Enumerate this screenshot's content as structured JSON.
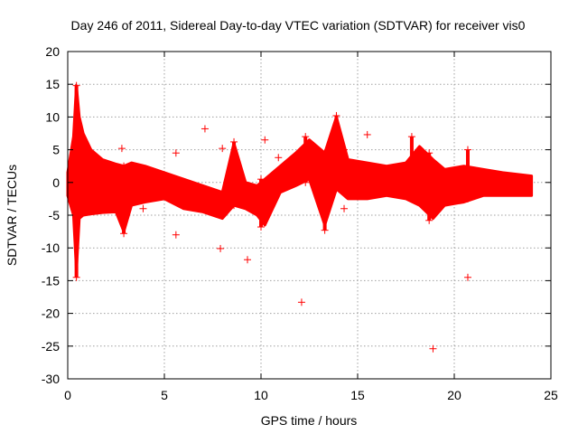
{
  "chart_data": {
    "type": "scatter",
    "title": "Day 246 of 2011, Sidereal Day-to-day VTEC variation (SDTVAR) for receiver vis0",
    "xlabel": "GPS time / hours",
    "ylabel": "SDTVAR / TECUs",
    "xlim": [
      0,
      25
    ],
    "ylim": [
      -30,
      20
    ],
    "xticks": [
      0,
      5,
      10,
      15,
      20,
      25
    ],
    "yticks": [
      -30,
      -25,
      -20,
      -15,
      -10,
      -5,
      0,
      5,
      10,
      15,
      20
    ],
    "grid": true,
    "marker": "+",
    "color": "#ff0000",
    "series": [
      {
        "name": "SDTVAR",
        "band": [
          {
            "x": 0.0,
            "upper": 1.5,
            "lower": -2.0
          },
          {
            "x": 0.3,
            "upper": 7.0,
            "lower": -5.0
          },
          {
            "x": 0.45,
            "upper": 14.8,
            "lower": -13.5
          },
          {
            "x": 0.6,
            "upper": 10.0,
            "lower": -5.5
          },
          {
            "x": 0.8,
            "upper": 7.5,
            "lower": -5.0
          },
          {
            "x": 1.2,
            "upper": 5.0,
            "lower": -4.8
          },
          {
            "x": 1.8,
            "upper": 3.5,
            "lower": -4.6
          },
          {
            "x": 2.5,
            "upper": 2.8,
            "lower": -4.5
          },
          {
            "x": 2.9,
            "upper": 2.5,
            "lower": -7.5
          },
          {
            "x": 3.3,
            "upper": 3.0,
            "lower": -3.5
          },
          {
            "x": 4.0,
            "upper": 2.5,
            "lower": -3.0
          },
          {
            "x": 5.0,
            "upper": 1.5,
            "lower": -2.5
          },
          {
            "x": 6.0,
            "upper": 0.5,
            "lower": -4.0
          },
          {
            "x": 7.0,
            "upper": -0.5,
            "lower": -4.5
          },
          {
            "x": 8.0,
            "upper": -1.5,
            "lower": -5.5
          },
          {
            "x": 8.6,
            "upper": 6.0,
            "lower": -3.5
          },
          {
            "x": 9.2,
            "upper": 0.0,
            "lower": -4.0
          },
          {
            "x": 9.8,
            "upper": -0.5,
            "lower": -5.0
          },
          {
            "x": 10.2,
            "upper": 0.5,
            "lower": -6.5
          },
          {
            "x": 11.0,
            "upper": 2.5,
            "lower": -1.5
          },
          {
            "x": 11.8,
            "upper": 4.5,
            "lower": -0.5
          },
          {
            "x": 12.5,
            "upper": 6.5,
            "lower": 0.5
          },
          {
            "x": 13.3,
            "upper": 4.5,
            "lower": -6.5
          },
          {
            "x": 13.9,
            "upper": 10.0,
            "lower": -1.0
          },
          {
            "x": 14.5,
            "upper": 3.5,
            "lower": -2.5
          },
          {
            "x": 15.5,
            "upper": 3.0,
            "lower": -2.5
          },
          {
            "x": 16.5,
            "upper": 2.5,
            "lower": -2.0
          },
          {
            "x": 17.5,
            "upper": 3.0,
            "lower": -2.5
          },
          {
            "x": 18.2,
            "upper": 5.5,
            "lower": -3.5
          },
          {
            "x": 18.9,
            "upper": 3.5,
            "lower": -5.5
          },
          {
            "x": 19.5,
            "upper": 2.0,
            "lower": -3.5
          },
          {
            "x": 20.5,
            "upper": 2.5,
            "lower": -3.0
          },
          {
            "x": 21.5,
            "upper": 2.0,
            "lower": -2.0
          },
          {
            "x": 22.5,
            "upper": 1.5,
            "lower": -2.0
          },
          {
            "x": 24.0,
            "upper": 1.0,
            "lower": -2.0
          }
        ],
        "spikes": [
          {
            "x": 0.45,
            "top": 14.8,
            "bottom": -14.5
          },
          {
            "x": 2.9,
            "top": 2.5,
            "bottom": -7.8
          },
          {
            "x": 8.6,
            "top": 6.2,
            "bottom": -3.5
          },
          {
            "x": 10.0,
            "top": 0.5,
            "bottom": -6.8
          },
          {
            "x": 12.3,
            "top": 7.0,
            "bottom": 0.0
          },
          {
            "x": 13.3,
            "top": 4.5,
            "bottom": -7.3
          },
          {
            "x": 13.9,
            "top": 10.2,
            "bottom": -1.0
          },
          {
            "x": 14.3,
            "top": 5.0,
            "bottom": -1.5
          },
          {
            "x": 17.8,
            "top": 7.0,
            "bottom": -1.5
          },
          {
            "x": 18.7,
            "top": 4.5,
            "bottom": -5.8
          },
          {
            "x": 20.7,
            "top": 5.0,
            "bottom": -2.5
          }
        ],
        "outliers": [
          {
            "x": 2.8,
            "y": 5.2
          },
          {
            "x": 3.9,
            "y": -4.0
          },
          {
            "x": 5.6,
            "y": 4.5
          },
          {
            "x": 5.6,
            "y": -8.0
          },
          {
            "x": 7.1,
            "y": 8.2
          },
          {
            "x": 7.9,
            "y": -10.1
          },
          {
            "x": 8.0,
            "y": 5.2
          },
          {
            "x": 9.3,
            "y": -11.8
          },
          {
            "x": 10.2,
            "y": 6.5
          },
          {
            "x": 10.9,
            "y": 3.8
          },
          {
            "x": 12.1,
            "y": -18.3
          },
          {
            "x": 14.3,
            "y": -4.0
          },
          {
            "x": 15.5,
            "y": 7.3
          },
          {
            "x": 18.9,
            "y": -25.4
          },
          {
            "x": 20.7,
            "y": -14.5
          }
        ]
      }
    ]
  }
}
